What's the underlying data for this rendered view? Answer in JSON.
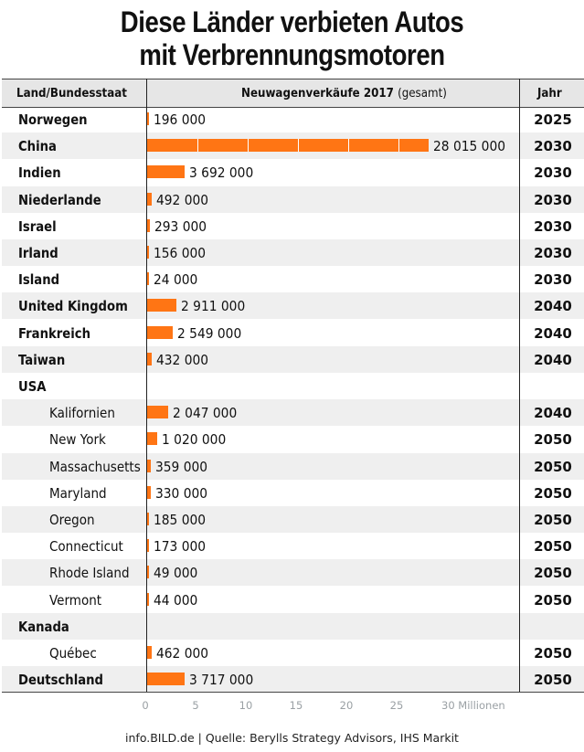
{
  "title_line1": "Diese Länder verbieten Autos",
  "title_line2": "mit Verbrennungsmotoren",
  "header": {
    "col1": "Land/Bundesstaat",
    "col2_main": "Neuwagenverkäufe 2017",
    "col2_sub": "(gesamt)",
    "col3": "Jahr"
  },
  "source": "info.BILD.de | Quelle: Berylls Strategy Advisors, IHS Markit",
  "bar_color": "#ff7514",
  "chart_data": {
    "type": "bar",
    "orientation": "horizontal",
    "xlabel_unit": "Millionen",
    "xlim": [
      0,
      30
    ],
    "xticks": [
      "0",
      "5",
      "10",
      "15",
      "20",
      "25",
      "30 Millionen"
    ],
    "rows": [
      {
        "name": "Norwegen",
        "level": "country",
        "value": 196000,
        "label": "196 000",
        "year": "2025"
      },
      {
        "name": "China",
        "level": "country",
        "value": 28015000,
        "label": "28 015 000",
        "year": "2030"
      },
      {
        "name": "Indien",
        "level": "country",
        "value": 3692000,
        "label": "3 692 000",
        "year": "2030"
      },
      {
        "name": "Niederlande",
        "level": "country",
        "value": 492000,
        "label": "492 000",
        "year": "2030"
      },
      {
        "name": "Israel",
        "level": "country",
        "value": 293000,
        "label": "293 000",
        "year": "2030"
      },
      {
        "name": "Irland",
        "level": "country",
        "value": 156000,
        "label": "156 000",
        "year": "2030"
      },
      {
        "name": "Island",
        "level": "country",
        "value": 24000,
        "label": "24 000",
        "year": "2030"
      },
      {
        "name": "United Kingdom",
        "level": "country",
        "value": 2911000,
        "label": "2 911 000",
        "year": "2040"
      },
      {
        "name": "Frankreich",
        "level": "country",
        "value": 2549000,
        "label": "2 549 000",
        "year": "2040"
      },
      {
        "name": "Taiwan",
        "level": "country",
        "value": 432000,
        "label": "432 000",
        "year": "2040"
      },
      {
        "name": "USA",
        "level": "country",
        "value": null,
        "label": "",
        "year": ""
      },
      {
        "name": "Kalifornien",
        "level": "state",
        "value": 2047000,
        "label": "2 047 000",
        "year": "2040"
      },
      {
        "name": "New York",
        "level": "state",
        "value": 1020000,
        "label": "1 020 000",
        "year": "2050"
      },
      {
        "name": "Massachusetts",
        "level": "state",
        "value": 359000,
        "label": "359 000",
        "year": "2050"
      },
      {
        "name": "Maryland",
        "level": "state",
        "value": 330000,
        "label": "330 000",
        "year": "2050"
      },
      {
        "name": "Oregon",
        "level": "state",
        "value": 185000,
        "label": "185 000",
        "year": "2050"
      },
      {
        "name": "Connecticut",
        "level": "state",
        "value": 173000,
        "label": "173 000",
        "year": "2050"
      },
      {
        "name": "Rhode Island",
        "level": "state",
        "value": 49000,
        "label": "49 000",
        "year": "2050"
      },
      {
        "name": "Vermont",
        "level": "state",
        "value": 44000,
        "label": "44 000",
        "year": "2050"
      },
      {
        "name": "Kanada",
        "level": "country",
        "value": null,
        "label": "",
        "year": ""
      },
      {
        "name": "Québec",
        "level": "state",
        "value": 462000,
        "label": "462 000",
        "year": "2050"
      },
      {
        "name": "Deutschland",
        "level": "country",
        "value": 3717000,
        "label": "3 717 000",
        "year": "2050"
      }
    ]
  }
}
